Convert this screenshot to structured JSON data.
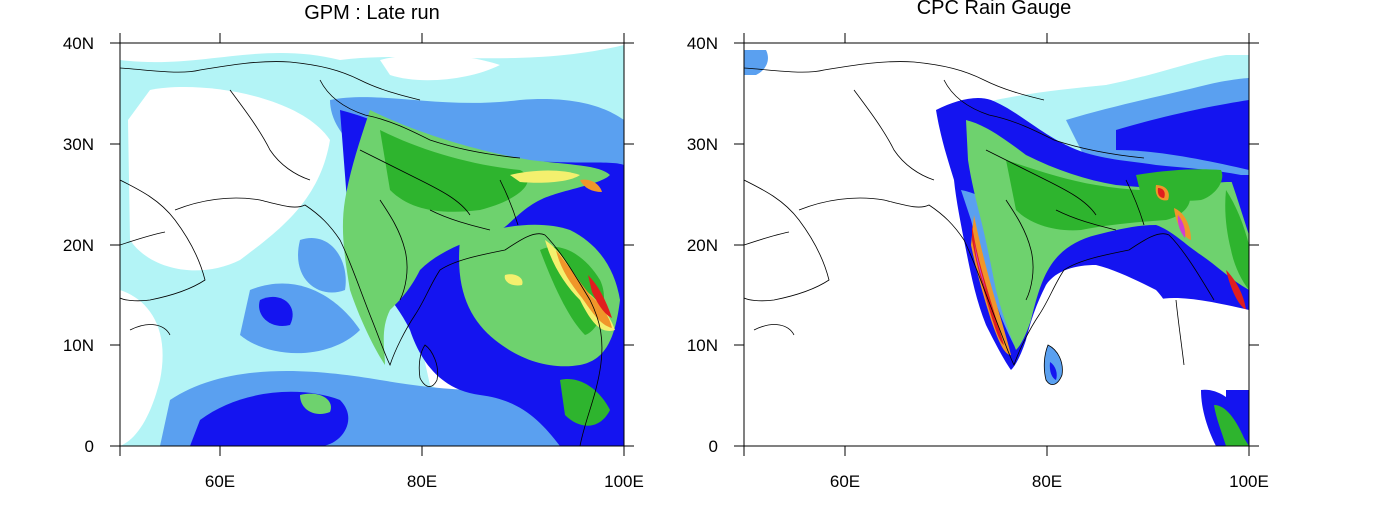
{
  "panels": [
    {
      "title": "GPM : Late run",
      "lat_labels": [
        "40N",
        "30N",
        "20N",
        "10N",
        "0"
      ],
      "lon_labels": [
        "60E",
        "80E",
        "100E"
      ]
    },
    {
      "title": "CPC Rain Gauge",
      "lat_labels": [
        "40N",
        "30N",
        "20N",
        "10N",
        "0"
      ],
      "lon_labels": [
        "60E",
        "80E",
        "100E"
      ]
    }
  ],
  "colors": {
    "very_light": "#b3f4f6",
    "light_blue": "#5aa0f0",
    "blue": "#1414f0",
    "green_light": "#6ed26e",
    "green": "#2eb42e",
    "yellow": "#f4f06e",
    "orange": "#f0962a",
    "red": "#e01e1e",
    "magenta": "#d040d0",
    "land_line": "#000000"
  }
}
